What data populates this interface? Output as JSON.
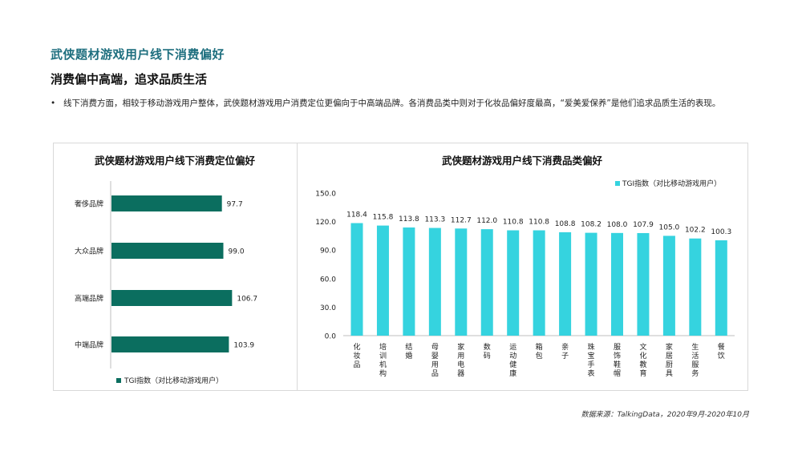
{
  "header": {
    "title": "武侠题材游戏用户线下消费偏好",
    "subtitle": "消费偏中高端，追求品质生活",
    "bullet": "线下消费方面，相较于移动游戏用户整体，武侠题材游戏用户消费定位更偏向于中高端品牌。各消费品类中则对于化妆品偏好度最高，“爱美爱保养”是他们追求品质生活的表现。"
  },
  "source": "数据来源：TalkingData，2020年9月-2020年10月",
  "colors": {
    "title": "#1d6e7e",
    "bar_dark": "#0b6e5f",
    "bar_cyan": "#35d3df"
  },
  "chart_data": [
    {
      "type": "bar",
      "orientation": "horizontal",
      "title": "武侠题材游戏用户线下消费定位偏好",
      "categories": [
        "奢侈品牌",
        "大众品牌",
        "高端品牌",
        "中端品牌"
      ],
      "series": [
        {
          "name": "TGI指数（对比移动游戏用户）",
          "values": [
            97.7,
            99.0,
            106.7,
            103.9
          ]
        }
      ],
      "legend": "bottom",
      "grid": false
    },
    {
      "type": "bar",
      "orientation": "vertical",
      "title": "武侠题材游戏用户线下消费品类偏好",
      "categories": [
        "化妆品",
        "培训机构",
        "结婚",
        "母婴用品",
        "家用电器",
        "数码",
        "运动健康",
        "箱包",
        "亲子",
        "珠宝手表",
        "服饰鞋帽",
        "文化教育",
        "家居厨具",
        "生活服务",
        "餐饮"
      ],
      "series": [
        {
          "name": "TGI指数（对比移动游戏用户）",
          "values": [
            118.4,
            115.8,
            113.8,
            113.3,
            112.7,
            112.0,
            110.8,
            110.8,
            108.8,
            108.2,
            108.0,
            107.9,
            105.0,
            102.2,
            100.3
          ]
        }
      ],
      "yticks": [
        "0.0",
        "30.0",
        "60.0",
        "90.0",
        "120.0",
        "150.0"
      ],
      "ylim": [
        0,
        150
      ],
      "legend": "top-right",
      "grid": false
    }
  ]
}
